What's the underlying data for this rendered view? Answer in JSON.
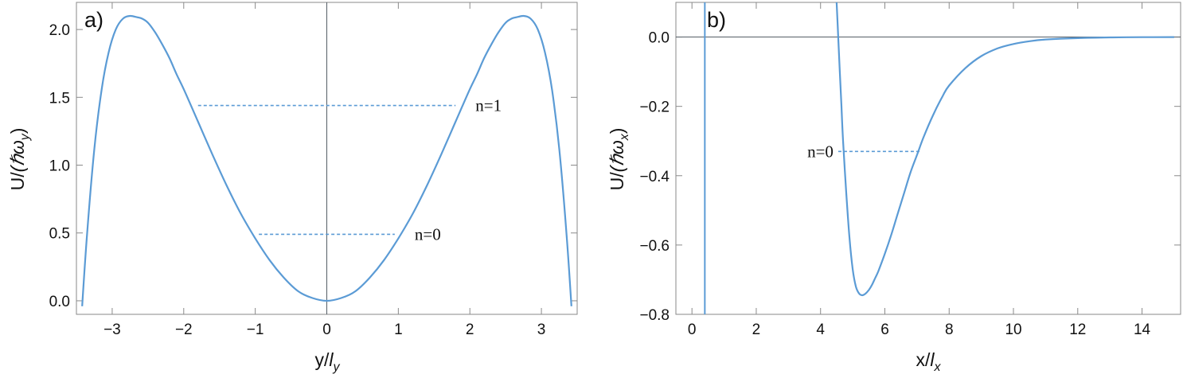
{
  "chart_data": [
    {
      "type": "line",
      "panel_label": "a)",
      "xlabel": "y/l",
      "xlabel_sub": "y",
      "ylabel": "U/(ℏω",
      "ylabel_sub": "y",
      "ylabel_close": ")",
      "xlim": [
        -3.5,
        3.5
      ],
      "ylim": [
        -0.1,
        2.2
      ],
      "xticks": [
        -3,
        -2,
        -1,
        0,
        1,
        2,
        3
      ],
      "xtick_labels": [
        "−3",
        "−2",
        "−1",
        "0",
        "1",
        "2",
        "3"
      ],
      "yticks": [
        0.0,
        0.5,
        1.0,
        1.5,
        2.0
      ],
      "ytick_labels": [
        "0.0",
        "0.5",
        "1.0",
        "1.5",
        "2.0"
      ],
      "zero_axes": {
        "x": 0
      },
      "series": [
        {
          "x": [
            -3.42,
            -3.35,
            -3.25,
            -3.15,
            -3.05,
            -2.95,
            -2.85,
            -2.75,
            -2.65,
            -2.58,
            -2.5,
            -2.4,
            -2.3,
            -2.2,
            -2.1,
            -2.0,
            -1.8,
            -1.6,
            -1.4,
            -1.2,
            -1.0,
            -0.8,
            -0.6,
            -0.4,
            -0.2,
            0.0,
            0.2,
            0.4,
            0.6,
            0.8,
            1.0,
            1.2,
            1.4,
            1.6,
            1.8,
            2.0,
            2.1,
            2.2,
            2.3,
            2.4,
            2.5,
            2.58,
            2.65,
            2.75,
            2.85,
            2.95,
            3.05,
            3.15,
            3.25,
            3.35,
            3.42
          ],
          "y": [
            -0.04,
            0.5,
            1.12,
            1.55,
            1.83,
            2.0,
            2.08,
            2.1,
            2.09,
            2.08,
            2.05,
            1.98,
            1.89,
            1.79,
            1.67,
            1.56,
            1.32,
            1.08,
            0.85,
            0.64,
            0.46,
            0.3,
            0.17,
            0.07,
            0.02,
            0.0,
            0.02,
            0.07,
            0.17,
            0.3,
            0.46,
            0.64,
            0.85,
            1.08,
            1.32,
            1.56,
            1.67,
            1.79,
            1.89,
            1.98,
            2.05,
            2.08,
            2.09,
            2.1,
            2.08,
            2.0,
            1.83,
            1.55,
            1.12,
            0.5,
            -0.04
          ],
          "color": "#5b9bd5"
        }
      ],
      "levels": [
        {
          "label": "n=1",
          "y": 1.44,
          "x1": -1.8,
          "x2": 1.8
        },
        {
          "label": "n=0",
          "y": 0.49,
          "x1": -0.95,
          "x2": 0.95
        }
      ]
    },
    {
      "type": "line",
      "panel_label": "b)",
      "xlabel": "x/l",
      "xlabel_sub": "x",
      "ylabel": "U/(ℏω",
      "ylabel_sub": "x",
      "ylabel_close": ")",
      "xlim": [
        -0.5,
        15.2
      ],
      "ylim": [
        -0.8,
        0.1
      ],
      "xticks": [
        0,
        2,
        4,
        6,
        8,
        10,
        12,
        14
      ],
      "xtick_labels": [
        "0",
        "2",
        "4",
        "6",
        "8",
        "10",
        "12",
        "14"
      ],
      "yticks": [
        -0.8,
        -0.6,
        -0.4,
        -0.2,
        0.0
      ],
      "ytick_labels": [
        "−0.8",
        "−0.6",
        "−0.4",
        "−0.2",
        "0.0"
      ],
      "zero_axes": {
        "y": 0
      },
      "vertical_line": {
        "x": 0.4,
        "color": "#5b9bd5"
      },
      "series": [
        {
          "x": [
            4.5,
            4.55,
            4.6,
            4.65,
            4.7,
            4.8,
            4.9,
            5.0,
            5.1,
            5.2,
            5.3,
            5.4,
            5.5,
            5.6,
            5.7,
            5.8,
            6.0,
            6.2,
            6.4,
            6.6,
            6.8,
            7.0,
            7.2,
            7.5,
            7.8,
            8.0,
            8.5,
            9.0,
            9.5,
            10.0,
            10.5,
            11.0,
            12.0,
            13.0,
            14.0,
            15.0
          ],
          "y": [
            0.1,
            0.0,
            -0.1,
            -0.2,
            -0.3,
            -0.45,
            -0.58,
            -0.67,
            -0.72,
            -0.74,
            -0.745,
            -0.74,
            -0.73,
            -0.715,
            -0.695,
            -0.675,
            -0.625,
            -0.57,
            -0.51,
            -0.45,
            -0.39,
            -0.34,
            -0.29,
            -0.225,
            -0.17,
            -0.14,
            -0.09,
            -0.055,
            -0.033,
            -0.02,
            -0.012,
            -0.007,
            -0.003,
            -0.001,
            -0.0004,
            -0.0001
          ],
          "color": "#5b9bd5"
        }
      ],
      "levels": [
        {
          "label": "n=0",
          "y": -0.33,
          "x1": 4.55,
          "x2": 7.1
        }
      ]
    }
  ]
}
